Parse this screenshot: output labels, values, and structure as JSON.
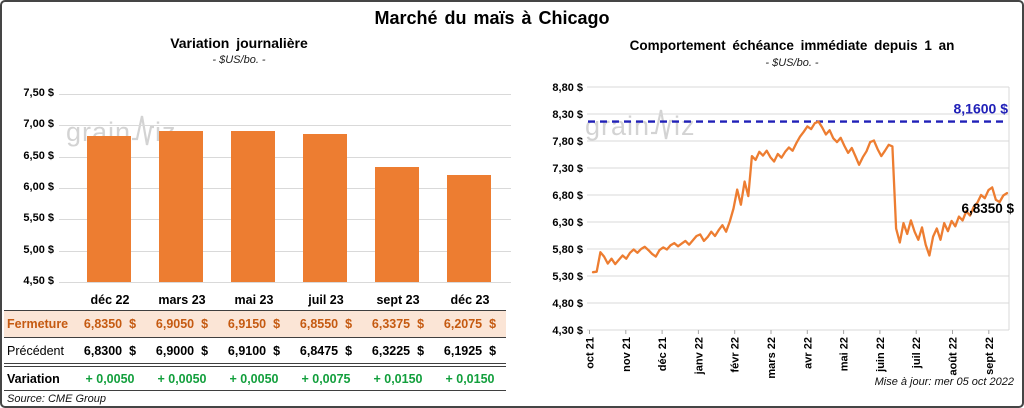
{
  "page": {
    "title": "Marché du maïs à Chicago",
    "source_note": "Source: CME Group",
    "update_note": "Mise à jour: mer 05 oct 2022",
    "watermark": {
      "prefix": "grain",
      "suffix": "iz"
    }
  },
  "colors": {
    "accent_orange": "#ED7D31",
    "ref_blue": "#2020B8",
    "variation_green": "#129F3C",
    "close_row_bg": "#FBE5D6",
    "close_row_text": "#C55A11",
    "gridline": "#D9D9D9",
    "watermark_gray": "#C9C9C9"
  },
  "chart_data": [
    {
      "type": "bar",
      "title": "Variation journalière",
      "subtitle": "- $US/bo. -",
      "categories": [
        "déc 22",
        "mars 23",
        "mai 23",
        "juil 23",
        "sept 23",
        "déc 23"
      ],
      "values": [
        6.835,
        6.905,
        6.915,
        6.855,
        6.3375,
        6.2075
      ],
      "ylabel": "",
      "ymin": 4.5,
      "ymax": 7.5,
      "ytick_step": 0.5,
      "ytick_labels": [
        "7,50 $",
        "7,00 $",
        "6,50 $",
        "6,00 $",
        "5,50 $",
        "5,00 $",
        "4,50 $"
      ],
      "grid": true,
      "bar_color": "#ED7D31"
    },
    {
      "type": "line",
      "title": "Comportement échéance immédiate depuis 1 an",
      "subtitle": "- $US/bo. -",
      "x_labels": [
        "oct 21",
        "nov 21",
        "déc 21",
        "janv 22",
        "févr 22",
        "mars 22",
        "avr 22",
        "mai 22",
        "juin 22",
        "juil 22",
        "août 22",
        "sept 22"
      ],
      "values": [
        5.37,
        5.38,
        5.74,
        5.66,
        5.53,
        5.62,
        5.52,
        5.6,
        5.68,
        5.62,
        5.73,
        5.79,
        5.73,
        5.8,
        5.84,
        5.78,
        5.71,
        5.66,
        5.78,
        5.83,
        5.79,
        5.87,
        5.91,
        5.85,
        5.9,
        5.95,
        5.88,
        5.96,
        6.04,
        6.07,
        5.95,
        6.02,
        6.12,
        6.04,
        6.15,
        6.24,
        6.12,
        6.31,
        6.55,
        6.9,
        6.62,
        7.05,
        6.78,
        7.52,
        7.45,
        7.6,
        7.53,
        7.62,
        7.5,
        7.42,
        7.56,
        7.49,
        7.6,
        7.68,
        7.62,
        7.76,
        7.88,
        7.97,
        8.07,
        8.02,
        8.13,
        8.16,
        8.05,
        7.92,
        8.0,
        7.85,
        7.78,
        7.86,
        7.71,
        7.58,
        7.67,
        7.52,
        7.36,
        7.5,
        7.61,
        7.78,
        7.81,
        7.65,
        7.52,
        7.62,
        7.73,
        7.7,
        6.18,
        5.92,
        6.28,
        6.08,
        6.33,
        6.12,
        5.97,
        6.2,
        5.88,
        5.68,
        6.03,
        6.18,
        5.97,
        6.28,
        6.13,
        6.32,
        6.22,
        6.4,
        6.33,
        6.5,
        6.42,
        6.58,
        6.66,
        6.8,
        6.74,
        6.89,
        6.94,
        6.71,
        6.67,
        6.79,
        6.835
      ],
      "ymin": 4.3,
      "ymax": 8.8,
      "ytick_step": 0.5,
      "ytick_labels": [
        "8,80 $",
        "8,30 $",
        "7,80 $",
        "7,30 $",
        "6,80 $",
        "6,30 $",
        "5,80 $",
        "5,30 $",
        "4,80 $",
        "4,30 $"
      ],
      "grid": true,
      "ref_line": {
        "value": 8.16,
        "label": "8,1600 $"
      },
      "last_label": "6,8350 $",
      "line_color": "#ED7D31",
      "ref_color": "#2020B8"
    }
  ],
  "table": {
    "columns": [
      "déc 22",
      "mars 23",
      "mai 23",
      "juil 23",
      "sept 23",
      "déc 23"
    ],
    "rows": [
      {
        "label": "Fermeture",
        "style": "close",
        "suffix": "$",
        "values": [
          "6,8350",
          "6,9050",
          "6,9150",
          "6,8550",
          "6,3375",
          "6,2075"
        ]
      },
      {
        "label": "Précédent",
        "style": "previous",
        "suffix": "$",
        "values": [
          "6,8300",
          "6,9000",
          "6,9100",
          "6,8475",
          "6,3225",
          "6,1925"
        ]
      },
      {
        "label": "Variation",
        "style": "variation",
        "suffix": "",
        "values": [
          "+ 0,0050",
          "+ 0,0050",
          "+ 0,0050",
          "+ 0,0075",
          "+ 0,0150",
          "+ 0,0150"
        ]
      }
    ]
  }
}
